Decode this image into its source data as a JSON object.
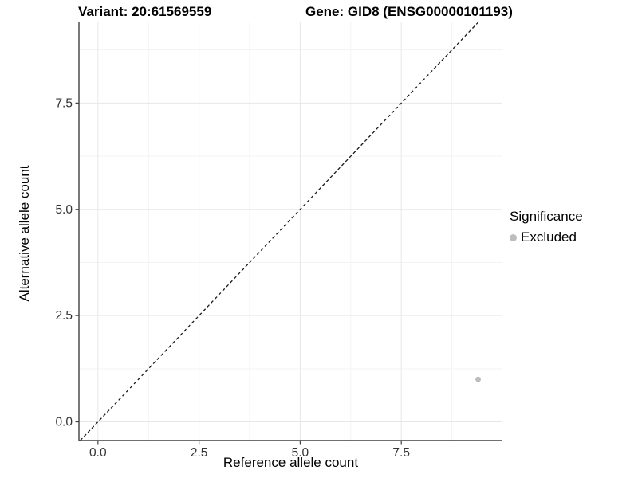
{
  "header": {
    "variant_title": "Variant: 20:61569559",
    "gene_title": "Gene: GID8 (ENSG00000101193)"
  },
  "chart_data": {
    "type": "scatter",
    "titles": [
      "Variant: 20:61569559",
      "Gene: GID8 (ENSG00000101193)"
    ],
    "xlabel": "Reference allele count",
    "ylabel": "Alternative allele count",
    "x_tick_labels": [
      "0.0",
      "2.5",
      "5.0",
      "7.5"
    ],
    "x_tick_values": [
      0,
      2.5,
      5,
      7.5
    ],
    "y_tick_labels": [
      "0.0",
      "2.5",
      "5.0",
      "7.5"
    ],
    "y_tick_values": [
      0,
      2.5,
      5,
      7.5
    ],
    "x_minor_values": [
      1.25,
      3.75,
      6.25,
      8.75
    ],
    "y_minor_values": [
      1.25,
      3.75,
      6.25,
      8.75
    ],
    "xlim": [
      -0.47,
      10.0
    ],
    "ylim": [
      -0.44,
      9.4
    ],
    "grid": true,
    "series": [
      {
        "name": "Excluded",
        "points": [
          {
            "x": 9.4,
            "y": 1.0
          }
        ]
      }
    ],
    "reference_line": {
      "type": "identity",
      "slope": 1,
      "intercept": 0,
      "style": "dashed"
    },
    "legend": {
      "title": "Significance",
      "position": "right",
      "entries": [
        {
          "label": "Excluded",
          "color": "#bdbdbd"
        }
      ]
    },
    "colors": {
      "point": "#bdbdbd",
      "grid_major": "#e7e7e7",
      "grid_minor": "#f3f3f3",
      "axis": "#404040",
      "tick_label": "#333333",
      "reference_line": "#1a1a1a",
      "background": "#ffffff"
    }
  }
}
